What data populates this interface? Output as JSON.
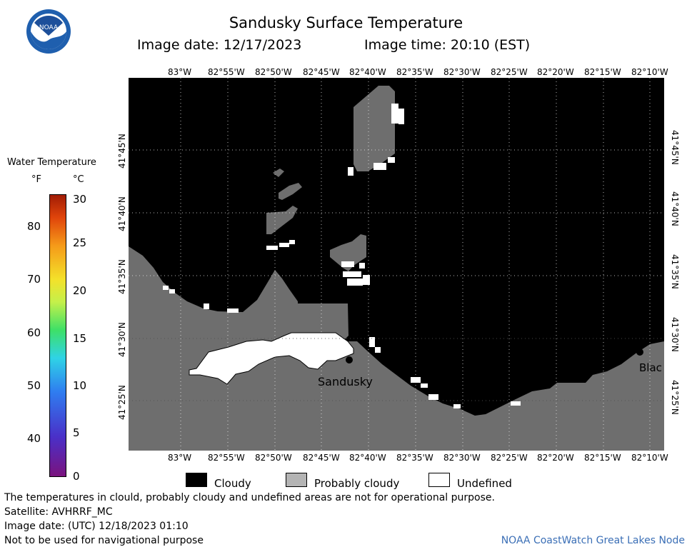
{
  "header": {
    "title": "Sandusky Surface Temperature",
    "image_date_label": "Image date: 12/17/2023",
    "image_time_label": "Image time: 20:10 (EST)"
  },
  "logo": {
    "text": "NOAA"
  },
  "axes": {
    "lon_ticks": [
      "83°W",
      "82°55'W",
      "82°50'W",
      "82°45'W",
      "82°40'W",
      "82°35'W",
      "82°30'W",
      "82°25'W",
      "82°20'W",
      "82°15'W",
      "82°10'W"
    ],
    "lat_ticks": [
      "41°45'N",
      "41°40'N",
      "41°35'N",
      "41°30'N",
      "41°25'N"
    ]
  },
  "colorbar": {
    "title": "Water Temperature",
    "unit_f": "°F",
    "unit_c": "°C",
    "f_ticks": [
      "80",
      "70",
      "60",
      "50",
      "40"
    ],
    "c_ticks": [
      "30",
      "25",
      "20",
      "15",
      "10",
      "5",
      "0"
    ]
  },
  "places": {
    "sandusky": "Sandusky",
    "bay": "Blac"
  },
  "legend": {
    "cloudy": "Cloudy",
    "probably_cloudy": "Probably cloudy",
    "undefined": "Undefined",
    "colors": {
      "cloudy": "#000000",
      "probably_cloudy": "#b4b4b4",
      "undefined": "#ffffff"
    }
  },
  "footer": {
    "line1": "The temperatures in clould, probably cloudy and undefined areas are not for operational purpose.",
    "line2": "Satellite: AVHRRF_MC",
    "line3": "Image date: (UTC) 12/18/2023  01:10",
    "line4": "Not to be used for navigational purpose",
    "credit": "NOAA CoastWatch Great Lakes Node"
  },
  "colors": {
    "land": "#6e6e6e",
    "water_cloud": "#000000",
    "cloud_probable": "#6e6e6e",
    "accent_link": "#3b6fb6"
  }
}
